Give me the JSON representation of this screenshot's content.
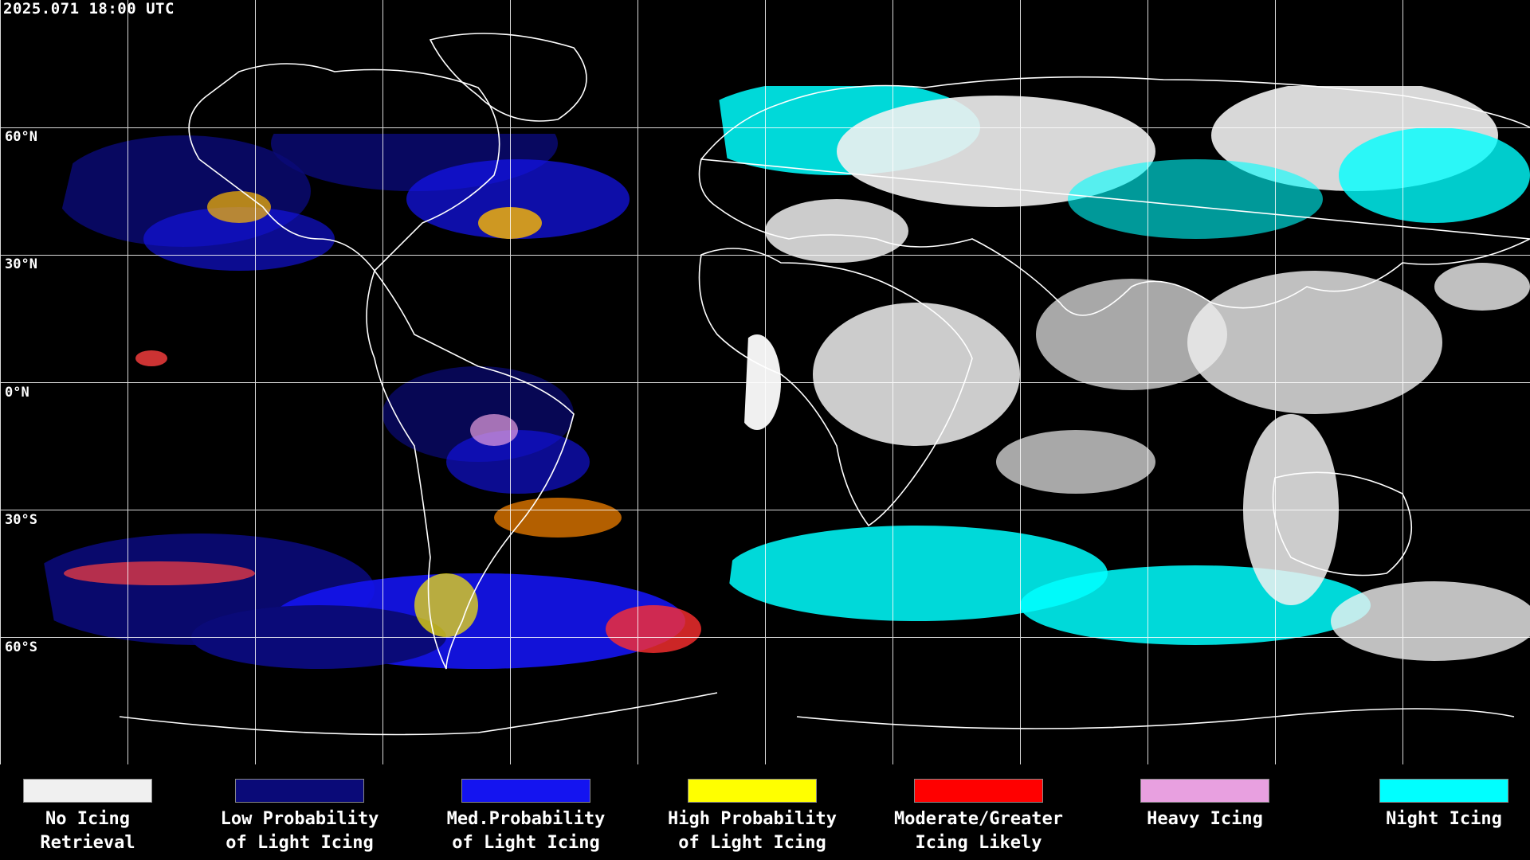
{
  "timestamp": "2025.071 18:00 UTC",
  "lat_labels": {
    "n60": "60°N",
    "n30": "30°N",
    "eq": "0°N",
    "s30": "30°S",
    "s60": "60°S"
  },
  "legend": [
    {
      "label": "No Icing\nRetrieval",
      "color": "#f0f0f0"
    },
    {
      "label": "Low Probability\nof Light Icing",
      "color": "#0a0a78"
    },
    {
      "label": "Med.Probability\nof Light Icing",
      "color": "#1414f0"
    },
    {
      "label": "High Probability\nof Light Icing",
      "color": "#ffff00"
    },
    {
      "label": "Moderate/Greater\nIcing Likely",
      "color": "#ff0000"
    },
    {
      "label": "Heavy Icing",
      "color": "#e8a0e0"
    },
    {
      "label": "Night Icing",
      "color": "#00ffff"
    }
  ]
}
